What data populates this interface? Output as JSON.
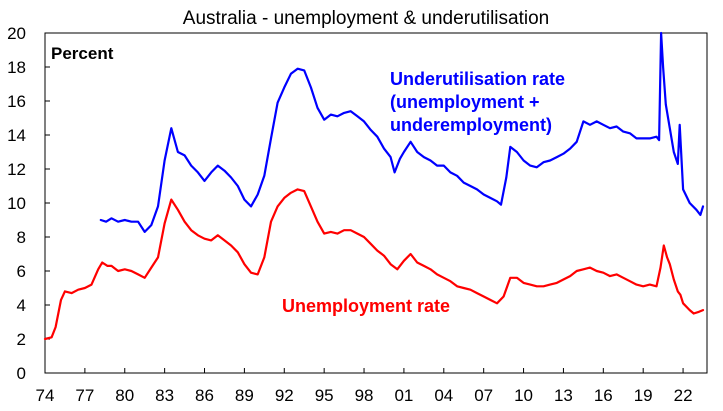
{
  "chart_data": {
    "type": "line",
    "title": "Australia - unemployment & underutilisation",
    "unit_label": "Percent",
    "xlabel": "",
    "ylabel": "",
    "ylim": [
      0,
      20
    ],
    "xlim": [
      1974.0,
      2023.8
    ],
    "y_ticks": [
      0,
      2,
      4,
      6,
      8,
      10,
      12,
      14,
      16,
      18,
      20
    ],
    "x_ticks": [
      {
        "value": 1974,
        "label": "74"
      },
      {
        "value": 1977,
        "label": "77"
      },
      {
        "value": 1980,
        "label": "80"
      },
      {
        "value": 1983,
        "label": "83"
      },
      {
        "value": 1986,
        "label": "86"
      },
      {
        "value": 1989,
        "label": "89"
      },
      {
        "value": 1992,
        "label": "92"
      },
      {
        "value": 1995,
        "label": "95"
      },
      {
        "value": 1998,
        "label": "98"
      },
      {
        "value": 2001,
        "label": "01"
      },
      {
        "value": 2004,
        "label": "04"
      },
      {
        "value": 2007,
        "label": "07"
      },
      {
        "value": 2010,
        "label": "10"
      },
      {
        "value": 2013,
        "label": "13"
      },
      {
        "value": 2016,
        "label": "16"
      },
      {
        "value": 2019,
        "label": "19"
      },
      {
        "value": 2022,
        "label": "22"
      }
    ],
    "grid": false,
    "series": [
      {
        "name": "Underutilisation rate (unemployment + underemployment)",
        "color": "#0000ff",
        "points": [
          [
            1978.2,
            9.0
          ],
          [
            1978.6,
            8.9
          ],
          [
            1979.0,
            9.1
          ],
          [
            1979.5,
            8.9
          ],
          [
            1980.0,
            9.0
          ],
          [
            1980.5,
            8.9
          ],
          [
            1981.0,
            8.9
          ],
          [
            1981.5,
            8.3
          ],
          [
            1982.0,
            8.7
          ],
          [
            1982.5,
            9.8
          ],
          [
            1983.0,
            12.5
          ],
          [
            1983.5,
            14.4
          ],
          [
            1984.0,
            13.0
          ],
          [
            1984.5,
            12.8
          ],
          [
            1985.0,
            12.2
          ],
          [
            1985.5,
            11.8
          ],
          [
            1986.0,
            11.3
          ],
          [
            1986.5,
            11.8
          ],
          [
            1987.0,
            12.2
          ],
          [
            1987.5,
            11.9
          ],
          [
            1988.0,
            11.5
          ],
          [
            1988.5,
            11.0
          ],
          [
            1989.0,
            10.2
          ],
          [
            1989.5,
            9.8
          ],
          [
            1990.0,
            10.5
          ],
          [
            1990.5,
            11.6
          ],
          [
            1991.0,
            13.8
          ],
          [
            1991.5,
            15.9
          ],
          [
            1992.0,
            16.8
          ],
          [
            1992.5,
            17.6
          ],
          [
            1993.0,
            17.9
          ],
          [
            1993.5,
            17.8
          ],
          [
            1994.0,
            16.8
          ],
          [
            1994.5,
            15.6
          ],
          [
            1995.0,
            14.9
          ],
          [
            1995.5,
            15.2
          ],
          [
            1996.0,
            15.1
          ],
          [
            1996.5,
            15.3
          ],
          [
            1997.0,
            15.4
          ],
          [
            1997.5,
            15.1
          ],
          [
            1998.0,
            14.8
          ],
          [
            1998.5,
            14.3
          ],
          [
            1999.0,
            13.9
          ],
          [
            1999.5,
            13.2
          ],
          [
            2000.0,
            12.7
          ],
          [
            2000.3,
            11.8
          ],
          [
            2000.7,
            12.6
          ],
          [
            2001.0,
            13.0
          ],
          [
            2001.5,
            13.6
          ],
          [
            2002.0,
            13.0
          ],
          [
            2002.5,
            12.7
          ],
          [
            2003.0,
            12.5
          ],
          [
            2003.5,
            12.2
          ],
          [
            2004.0,
            12.2
          ],
          [
            2004.5,
            11.8
          ],
          [
            2005.0,
            11.6
          ],
          [
            2005.5,
            11.2
          ],
          [
            2006.0,
            11.0
          ],
          [
            2006.5,
            10.8
          ],
          [
            2007.0,
            10.5
          ],
          [
            2007.5,
            10.3
          ],
          [
            2008.0,
            10.1
          ],
          [
            2008.3,
            9.9
          ],
          [
            2008.7,
            11.5
          ],
          [
            2009.0,
            13.3
          ],
          [
            2009.5,
            13.0
          ],
          [
            2010.0,
            12.5
          ],
          [
            2010.5,
            12.2
          ],
          [
            2011.0,
            12.1
          ],
          [
            2011.5,
            12.4
          ],
          [
            2012.0,
            12.5
          ],
          [
            2012.5,
            12.7
          ],
          [
            2013.0,
            12.9
          ],
          [
            2013.5,
            13.2
          ],
          [
            2014.0,
            13.6
          ],
          [
            2014.5,
            14.8
          ],
          [
            2015.0,
            14.6
          ],
          [
            2015.5,
            14.8
          ],
          [
            2016.0,
            14.6
          ],
          [
            2016.5,
            14.4
          ],
          [
            2017.0,
            14.5
          ],
          [
            2017.5,
            14.2
          ],
          [
            2018.0,
            14.1
          ],
          [
            2018.5,
            13.8
          ],
          [
            2019.0,
            13.8
          ],
          [
            2019.5,
            13.8
          ],
          [
            2020.0,
            13.9
          ],
          [
            2020.2,
            13.7
          ],
          [
            2020.35,
            20.0
          ],
          [
            2020.5,
            18.0
          ],
          [
            2020.7,
            15.8
          ],
          [
            2021.0,
            14.4
          ],
          [
            2021.3,
            13.0
          ],
          [
            2021.6,
            12.3
          ],
          [
            2021.75,
            14.6
          ],
          [
            2022.0,
            10.8
          ],
          [
            2022.5,
            10.0
          ],
          [
            2023.0,
            9.6
          ],
          [
            2023.3,
            9.3
          ],
          [
            2023.5,
            9.8
          ]
        ]
      },
      {
        "name": "Unemployment rate",
        "color": "#ff0000",
        "points": [
          [
            1974.0,
            2.0
          ],
          [
            1974.5,
            2.1
          ],
          [
            1974.8,
            2.7
          ],
          [
            1975.2,
            4.3
          ],
          [
            1975.5,
            4.8
          ],
          [
            1976.0,
            4.7
          ],
          [
            1976.5,
            4.9
          ],
          [
            1977.0,
            5.0
          ],
          [
            1977.5,
            5.2
          ],
          [
            1978.0,
            6.1
          ],
          [
            1978.3,
            6.5
          ],
          [
            1978.7,
            6.3
          ],
          [
            1979.0,
            6.3
          ],
          [
            1979.5,
            6.0
          ],
          [
            1980.0,
            6.1
          ],
          [
            1980.5,
            6.0
          ],
          [
            1981.0,
            5.8
          ],
          [
            1981.5,
            5.6
          ],
          [
            1982.0,
            6.2
          ],
          [
            1982.5,
            6.8
          ],
          [
            1983.0,
            8.8
          ],
          [
            1983.5,
            10.2
          ],
          [
            1984.0,
            9.6
          ],
          [
            1984.5,
            8.9
          ],
          [
            1985.0,
            8.4
          ],
          [
            1985.5,
            8.1
          ],
          [
            1986.0,
            7.9
          ],
          [
            1986.5,
            7.8
          ],
          [
            1987.0,
            8.1
          ],
          [
            1987.5,
            7.8
          ],
          [
            1988.0,
            7.5
          ],
          [
            1988.5,
            7.1
          ],
          [
            1989.0,
            6.4
          ],
          [
            1989.5,
            5.9
          ],
          [
            1990.0,
            5.8
          ],
          [
            1990.5,
            6.8
          ],
          [
            1991.0,
            8.9
          ],
          [
            1991.5,
            9.8
          ],
          [
            1992.0,
            10.3
          ],
          [
            1992.5,
            10.6
          ],
          [
            1993.0,
            10.8
          ],
          [
            1993.5,
            10.7
          ],
          [
            1994.0,
            9.8
          ],
          [
            1994.5,
            8.9
          ],
          [
            1995.0,
            8.2
          ],
          [
            1995.5,
            8.3
          ],
          [
            1996.0,
            8.2
          ],
          [
            1996.5,
            8.4
          ],
          [
            1997.0,
            8.4
          ],
          [
            1997.5,
            8.2
          ],
          [
            1998.0,
            8.0
          ],
          [
            1998.5,
            7.6
          ],
          [
            1999.0,
            7.2
          ],
          [
            1999.5,
            6.9
          ],
          [
            2000.0,
            6.4
          ],
          [
            2000.5,
            6.1
          ],
          [
            2001.0,
            6.6
          ],
          [
            2001.5,
            7.0
          ],
          [
            2002.0,
            6.5
          ],
          [
            2002.5,
            6.3
          ],
          [
            2003.0,
            6.1
          ],
          [
            2003.5,
            5.8
          ],
          [
            2004.0,
            5.6
          ],
          [
            2004.5,
            5.4
          ],
          [
            2005.0,
            5.1
          ],
          [
            2005.5,
            5.0
          ],
          [
            2006.0,
            4.9
          ],
          [
            2006.5,
            4.7
          ],
          [
            2007.0,
            4.5
          ],
          [
            2007.5,
            4.3
          ],
          [
            2008.0,
            4.1
          ],
          [
            2008.5,
            4.5
          ],
          [
            2009.0,
            5.6
          ],
          [
            2009.5,
            5.6
          ],
          [
            2010.0,
            5.3
          ],
          [
            2010.5,
            5.2
          ],
          [
            2011.0,
            5.1
          ],
          [
            2011.5,
            5.1
          ],
          [
            2012.0,
            5.2
          ],
          [
            2012.5,
            5.3
          ],
          [
            2013.0,
            5.5
          ],
          [
            2013.5,
            5.7
          ],
          [
            2014.0,
            6.0
          ],
          [
            2014.5,
            6.1
          ],
          [
            2015.0,
            6.2
          ],
          [
            2015.5,
            6.0
          ],
          [
            2016.0,
            5.9
          ],
          [
            2016.5,
            5.7
          ],
          [
            2017.0,
            5.8
          ],
          [
            2017.5,
            5.6
          ],
          [
            2018.0,
            5.4
          ],
          [
            2018.5,
            5.2
          ],
          [
            2019.0,
            5.1
          ],
          [
            2019.5,
            5.2
          ],
          [
            2020.0,
            5.1
          ],
          [
            2020.3,
            6.2
          ],
          [
            2020.55,
            7.5
          ],
          [
            2020.8,
            6.8
          ],
          [
            2021.0,
            6.4
          ],
          [
            2021.3,
            5.5
          ],
          [
            2021.6,
            4.8
          ],
          [
            2021.8,
            4.6
          ],
          [
            2022.0,
            4.1
          ],
          [
            2022.5,
            3.7
          ],
          [
            2022.8,
            3.5
          ],
          [
            2023.2,
            3.6
          ],
          [
            2023.5,
            3.7
          ]
        ]
      }
    ],
    "annotations": [
      {
        "text": "Underutilisation rate",
        "color": "#0000ff"
      },
      {
        "text": "(unemployment +",
        "color": "#0000ff"
      },
      {
        "text": "underemployment)",
        "color": "#0000ff"
      },
      {
        "text": "Unemployment rate",
        "color": "#ff0000"
      }
    ]
  }
}
